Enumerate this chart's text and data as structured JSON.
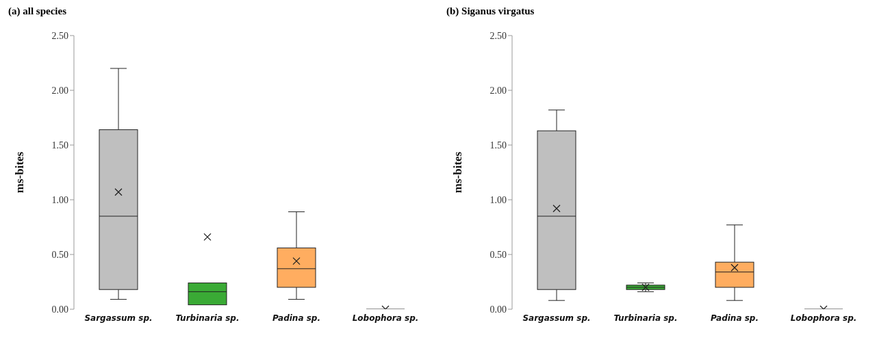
{
  "chart_data": [
    {
      "type": "box",
      "title": "(a) all species",
      "ylabel": "ms-bites",
      "categories": [
        "Sargassum sp.",
        "Turbinaria sp.",
        "Padina sp.",
        "Lobophora sp."
      ],
      "colors": [
        "#bfbfbf",
        "#3aaa35",
        "#ffad60",
        "#222222"
      ],
      "boxes": [
        {
          "low": 0.09,
          "q1": 0.18,
          "median": 0.85,
          "q3": 1.64,
          "high": 2.2,
          "mean": 1.07
        },
        {
          "low": 0.04,
          "q1": 0.04,
          "median": 0.16,
          "q3": 0.24,
          "high": 0.24,
          "mean": 0.66
        },
        {
          "low": 0.09,
          "q1": 0.2,
          "median": 0.37,
          "q3": 0.56,
          "high": 0.89,
          "mean": 0.44
        },
        {
          "low": 0,
          "q1": 0,
          "median": 0,
          "q3": 0,
          "high": 0,
          "mean": 0
        }
      ],
      "ylim": [
        0,
        2.5
      ],
      "yticks": [
        {
          "value": 0,
          "label": "0.00"
        },
        {
          "value": 0.5,
          "label": "0.50"
        },
        {
          "value": 1,
          "label": "1.00"
        },
        {
          "value": 1.5,
          "label": "1.50"
        },
        {
          "value": 2,
          "label": "2.00"
        },
        {
          "value": 2.5,
          "label": "2.50"
        }
      ]
    },
    {
      "type": "box",
      "title": "(b) Siganus virgatus",
      "ylabel": "ms-bites",
      "categories": [
        "Sargassum sp.",
        "Turbinaria sp.",
        "Padina sp.",
        "Lobophora sp."
      ],
      "colors": [
        "#bfbfbf",
        "#3aaa35",
        "#ffad60",
        "#222222"
      ],
      "boxes": [
        {
          "low": 0.08,
          "q1": 0.18,
          "median": 0.85,
          "q3": 1.63,
          "high": 1.82,
          "mean": 0.92
        },
        {
          "low": 0.16,
          "q1": 0.18,
          "median": 0.2,
          "q3": 0.22,
          "high": 0.24,
          "mean": 0.2
        },
        {
          "low": 0.08,
          "q1": 0.2,
          "median": 0.34,
          "q3": 0.43,
          "high": 0.77,
          "mean": 0.38
        },
        {
          "low": 0,
          "q1": 0,
          "median": 0,
          "q3": 0,
          "high": 0,
          "mean": 0
        }
      ],
      "ylim": [
        0,
        2.5
      ],
      "yticks": [
        {
          "value": 0,
          "label": "0.00"
        },
        {
          "value": 0.5,
          "label": "0.50"
        },
        {
          "value": 1,
          "label": "1.00"
        },
        {
          "value": 1.5,
          "label": "1.50"
        },
        {
          "value": 2,
          "label": "2.00"
        },
        {
          "value": 2.5,
          "label": "2.50"
        }
      ]
    }
  ]
}
